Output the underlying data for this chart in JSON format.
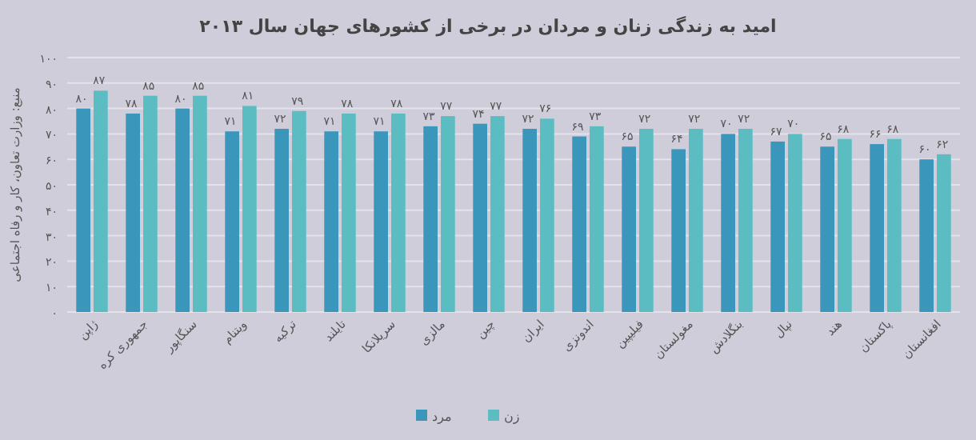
{
  "chart_data": {
    "type": "bar",
    "title": "امید به زندگی زنان و مردان در برخی از کشورهای جهان سال ۲۰۱۳",
    "ylabel": "منبع: وزارت تعاون، کار و رفاه اجتماعی",
    "categories": [
      "ژاپن",
      "جمهوری کره",
      "سنگاپور",
      "ویتنام",
      "ترکیه",
      "تایلند",
      "سریلانکا",
      "مالزی",
      "چین",
      "ایران",
      "اندونزی",
      "فیلیپین",
      "مغولستان",
      "بنگلادش",
      "نپال",
      "هند",
      "پاکستان",
      "افغانستان"
    ],
    "series": [
      {
        "name": "مرد",
        "color": "#3a96ba",
        "values": [
          80,
          78,
          80,
          71,
          72,
          71,
          71,
          73,
          74,
          72,
          69,
          65,
          64,
          70,
          67,
          65,
          66,
          60
        ],
        "value_labels": [
          "۸۰",
          "۷۸",
          "۸۰",
          "۷۱",
          "۷۲",
          "۷۱",
          "۷۱",
          "۷۳",
          "۷۴",
          "۷۲",
          "۶۹",
          "۶۵",
          "۶۴",
          "۷۰",
          "۶۷",
          "۶۵",
          "۶۶",
          "۶۰"
        ]
      },
      {
        "name": "زن",
        "color": "#5bbcc2",
        "values": [
          87,
          85,
          85,
          81,
          79,
          78,
          78,
          77,
          77,
          76,
          73,
          72,
          72,
          72,
          70,
          68,
          68,
          62
        ],
        "value_labels": [
          "۸۷",
          "۸۵",
          "۸۵",
          "۸۱",
          "۷۹",
          "۷۸",
          "۷۸",
          "۷۷",
          "۷۷",
          "۷۶",
          "۷۳",
          "۷۲",
          "۷۲",
          "۷۲",
          "۷۰",
          "۶۸",
          "۶۸",
          "۶۲"
        ]
      }
    ],
    "ylim": [
      0,
      100
    ],
    "yticks": [
      {
        "value": 0,
        "label": "۰"
      },
      {
        "value": 10,
        "label": "۱۰"
      },
      {
        "value": 20,
        "label": "۲۰"
      },
      {
        "value": 30,
        "label": "۳۰"
      },
      {
        "value": 40,
        "label": "۴۰"
      },
      {
        "value": 50,
        "label": "۵۰"
      },
      {
        "value": 60,
        "label": "۶۰"
      },
      {
        "value": 70,
        "label": "۷۰"
      },
      {
        "value": 80,
        "label": "۸۰"
      },
      {
        "value": 90,
        "label": "۹۰"
      },
      {
        "value": 100,
        "label": "۱۰۰"
      }
    ],
    "grid": "y",
    "legend": "bottom"
  }
}
